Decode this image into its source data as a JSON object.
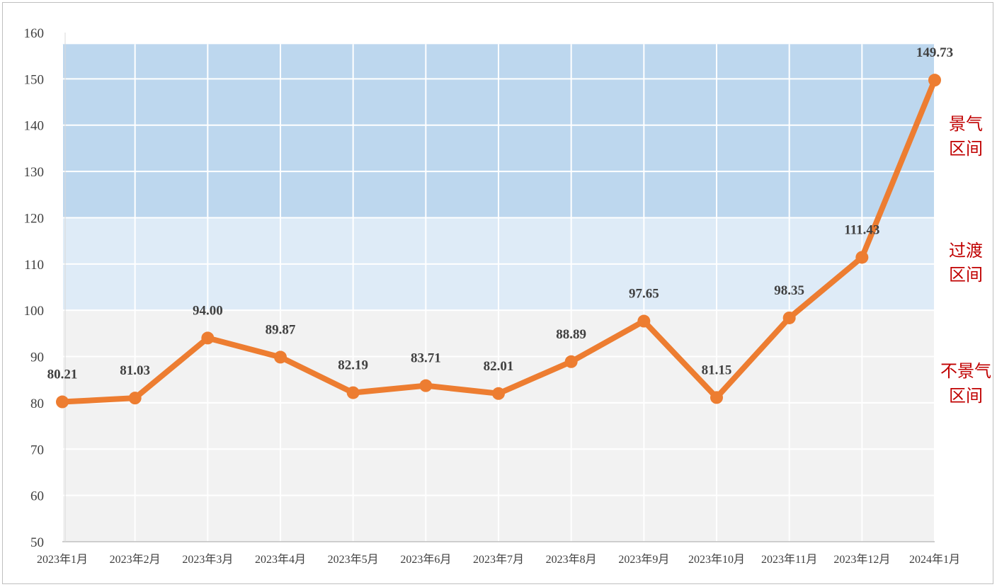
{
  "chart_data": {
    "type": "line",
    "title": "",
    "xlabel": "",
    "ylabel": "",
    "categories": [
      "2023年1月",
      "2023年2月",
      "2023年3月",
      "2023年4月",
      "2023年5月",
      "2023年6月",
      "2023年7月",
      "2023年8月",
      "2023年9月",
      "2023年10月",
      "2023年11月",
      "2023年12月",
      "2024年1月"
    ],
    "series": [
      {
        "values": [
          80.21,
          81.03,
          94.0,
          89.87,
          82.19,
          83.71,
          82.01,
          88.89,
          97.65,
          81.15,
          98.35,
          111.43,
          149.73
        ],
        "labels": [
          "80.21",
          "81.03",
          "94.00",
          "89.87",
          "82.19",
          "83.71",
          "82.01",
          "88.89",
          "97.65",
          "81.15",
          "98.35",
          "111.43",
          "149.73"
        ],
        "color": "#ed7d31"
      }
    ],
    "ylim": [
      50,
      160
    ],
    "yticks": [
      "50",
      "60",
      "70",
      "80",
      "90",
      "100",
      "110",
      "120",
      "130",
      "140",
      "150",
      "160"
    ],
    "grid": true,
    "bands": [
      {
        "from": 50,
        "to": 100,
        "color": "#f2f2f2",
        "label_lines": [
          "不景气",
          "区间"
        ]
      },
      {
        "from": 100,
        "to": 120,
        "color": "#deebf7",
        "label_lines": [
          "过渡",
          "区间"
        ]
      },
      {
        "from": 120,
        "to": 157.5,
        "color": "#bdd7ee",
        "label_lines": [
          "景气",
          "区间"
        ]
      }
    ],
    "band_label_color": "#c00000"
  }
}
